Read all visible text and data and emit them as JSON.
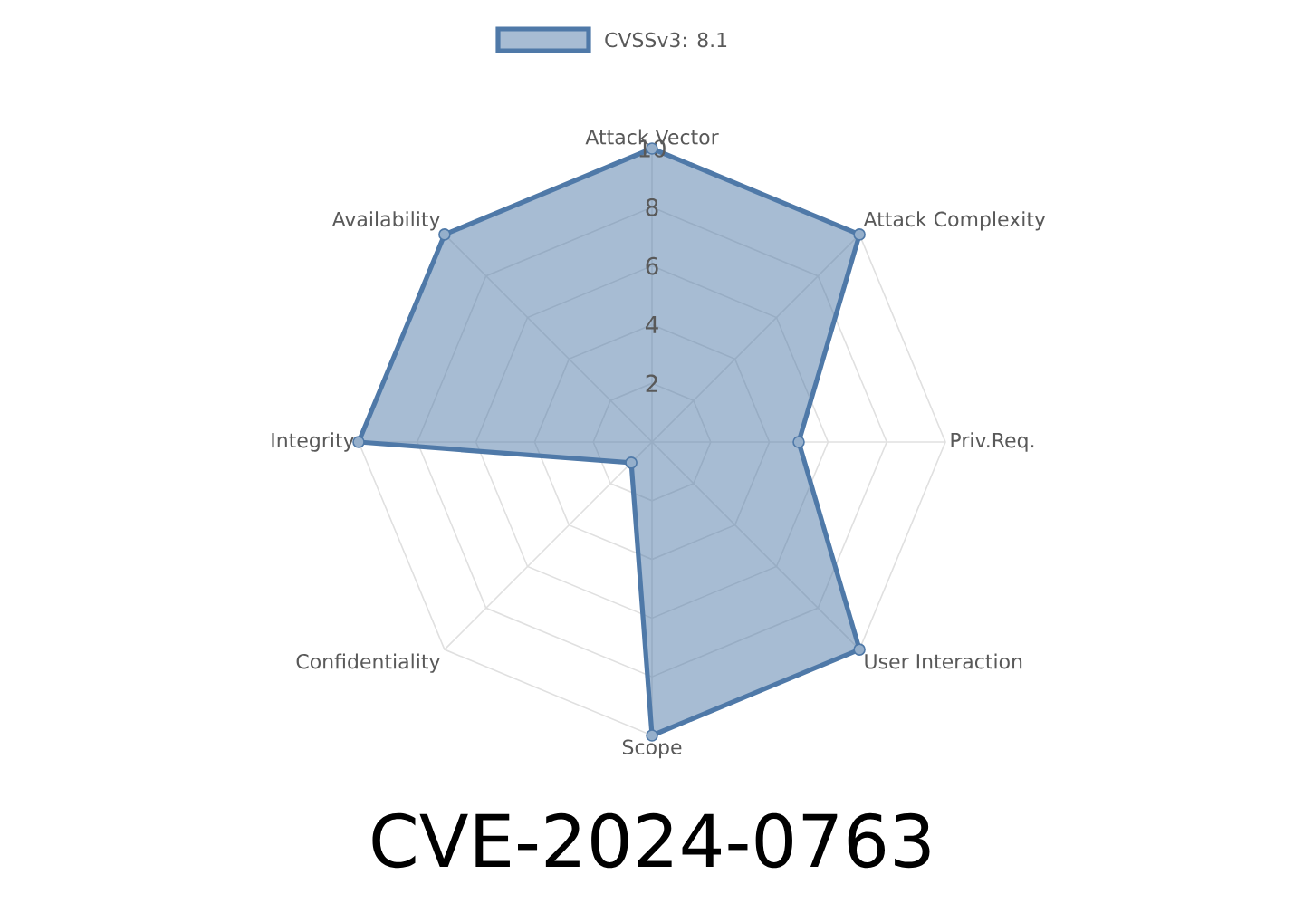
{
  "chart_data": {
    "type": "radar",
    "title": "CVE-2024-0763",
    "categories": [
      "Attack Vector",
      "Attack Complexity",
      "Priv.Req.",
      "User Interaction",
      "Scope",
      "Confidentiality",
      "Integrity",
      "Availability"
    ],
    "series": [
      {
        "name": "CVSSv3: 8.1",
        "color": "#4f79a8",
        "values": [
          10,
          10,
          5,
          10,
          10,
          1,
          10,
          10
        ]
      }
    ],
    "ylim": [
      0,
      10
    ],
    "yticks": [
      2,
      4,
      6,
      8,
      10
    ],
    "grid": true,
    "legend": "top",
    "marker": "circle"
  }
}
